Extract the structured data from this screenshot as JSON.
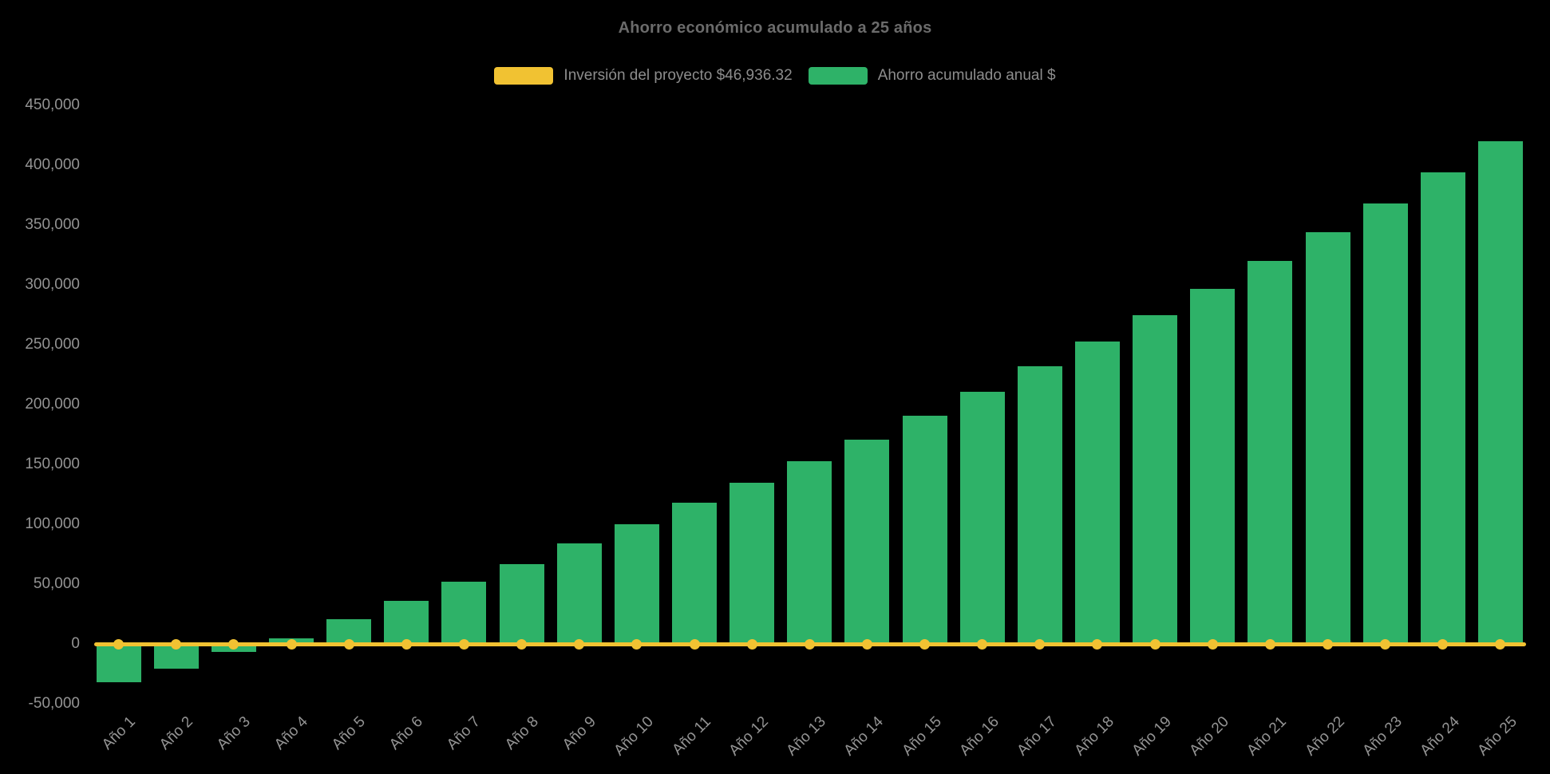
{
  "title": "Ahorro económico acumulado a 25 años",
  "colors": {
    "background": "#000000",
    "bar_green": "#2eb268",
    "line_yellow": "#f1c232",
    "title_text": "#6b6b6b",
    "axis_text": "#949494",
    "legend_text": "#8d8d8d"
  },
  "legend": [
    {
      "label": "Inversión del proyecto $46,936.32",
      "color": "#f1c232",
      "type": "line"
    },
    {
      "label": "Ahorro acumulado anual $",
      "color": "#2eb268",
      "type": "bar"
    }
  ],
  "chart_data": {
    "type": "bar",
    "title": "Ahorro económico acumulado a 25 años",
    "xlabel": "",
    "ylabel": "",
    "categories": [
      "Año 1",
      "Año 2",
      "Año 3",
      "Año 4",
      "Año 5",
      "Año 6",
      "Año 7",
      "Año 8",
      "Año 9",
      "Año 10",
      "Año 11",
      "Año 12",
      "Año 13",
      "Año 14",
      "Año 15",
      "Año 16",
      "Año 17",
      "Año 18",
      "Año 19",
      "Año 20",
      "Año 21",
      "Año 22",
      "Año 23",
      "Año 24",
      "Año 25"
    ],
    "series": [
      {
        "name": "Ahorro acumulado anual $",
        "type": "bar",
        "color": "#2eb268",
        "values": [
          -32000,
          -21000,
          -7000,
          5000,
          21000,
          36000,
          52000,
          67000,
          84000,
          100000,
          118000,
          135000,
          153000,
          171000,
          191000,
          211000,
          232000,
          253000,
          275000,
          297000,
          320000,
          344000,
          368000,
          394000,
          420000
        ]
      },
      {
        "name": "Inversión del proyecto $46,936.32",
        "type": "line",
        "color": "#f1c232",
        "values": [
          0,
          0,
          0,
          0,
          0,
          0,
          0,
          0,
          0,
          0,
          0,
          0,
          0,
          0,
          0,
          0,
          0,
          0,
          0,
          0,
          0,
          0,
          0,
          0,
          0
        ]
      }
    ],
    "yticks": [
      -50000,
      0,
      50000,
      100000,
      150000,
      200000,
      250000,
      300000,
      350000,
      400000,
      450000
    ],
    "ylim": [
      -50000,
      450000
    ],
    "grid": false,
    "legend_position": "top",
    "background": "#000000"
  }
}
